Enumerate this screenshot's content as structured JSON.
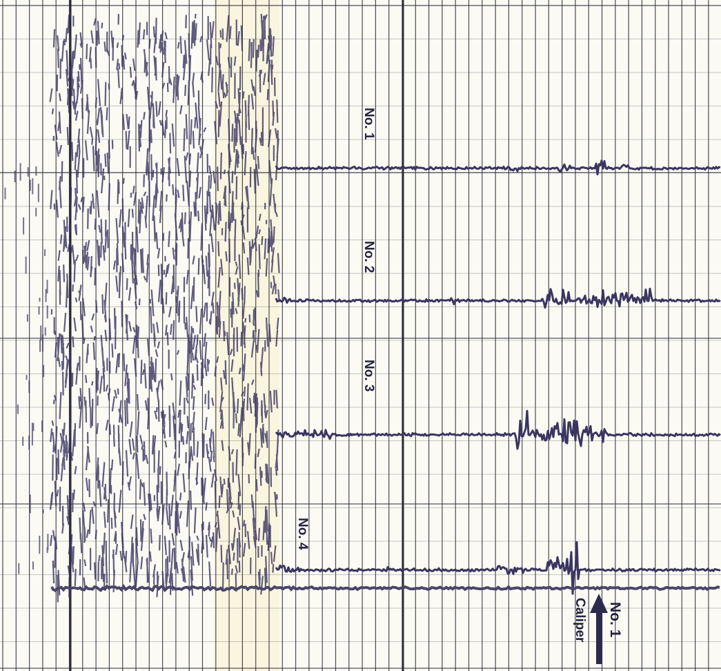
{
  "chart_data": {
    "type": "line",
    "title": "",
    "xlabel": "",
    "ylabel": "",
    "grid": true,
    "colors": {
      "paper": "#fbfbf4",
      "grid": "#2b2b3a",
      "trace": "#3a3560",
      "ink": "#24223f"
    },
    "series": [
      {
        "name": "No. 1",
        "baseline": 0.0
      },
      {
        "name": "No. 2",
        "baseline": 0.0
      },
      {
        "name": "No. 3",
        "baseline": 0.0
      },
      {
        "name": "No. 4",
        "baseline": 0.0
      }
    ],
    "annotations": [
      {
        "text": "No. 1",
        "icon": "up-arrow-icon"
      },
      {
        "text": "Caliper"
      }
    ]
  }
}
